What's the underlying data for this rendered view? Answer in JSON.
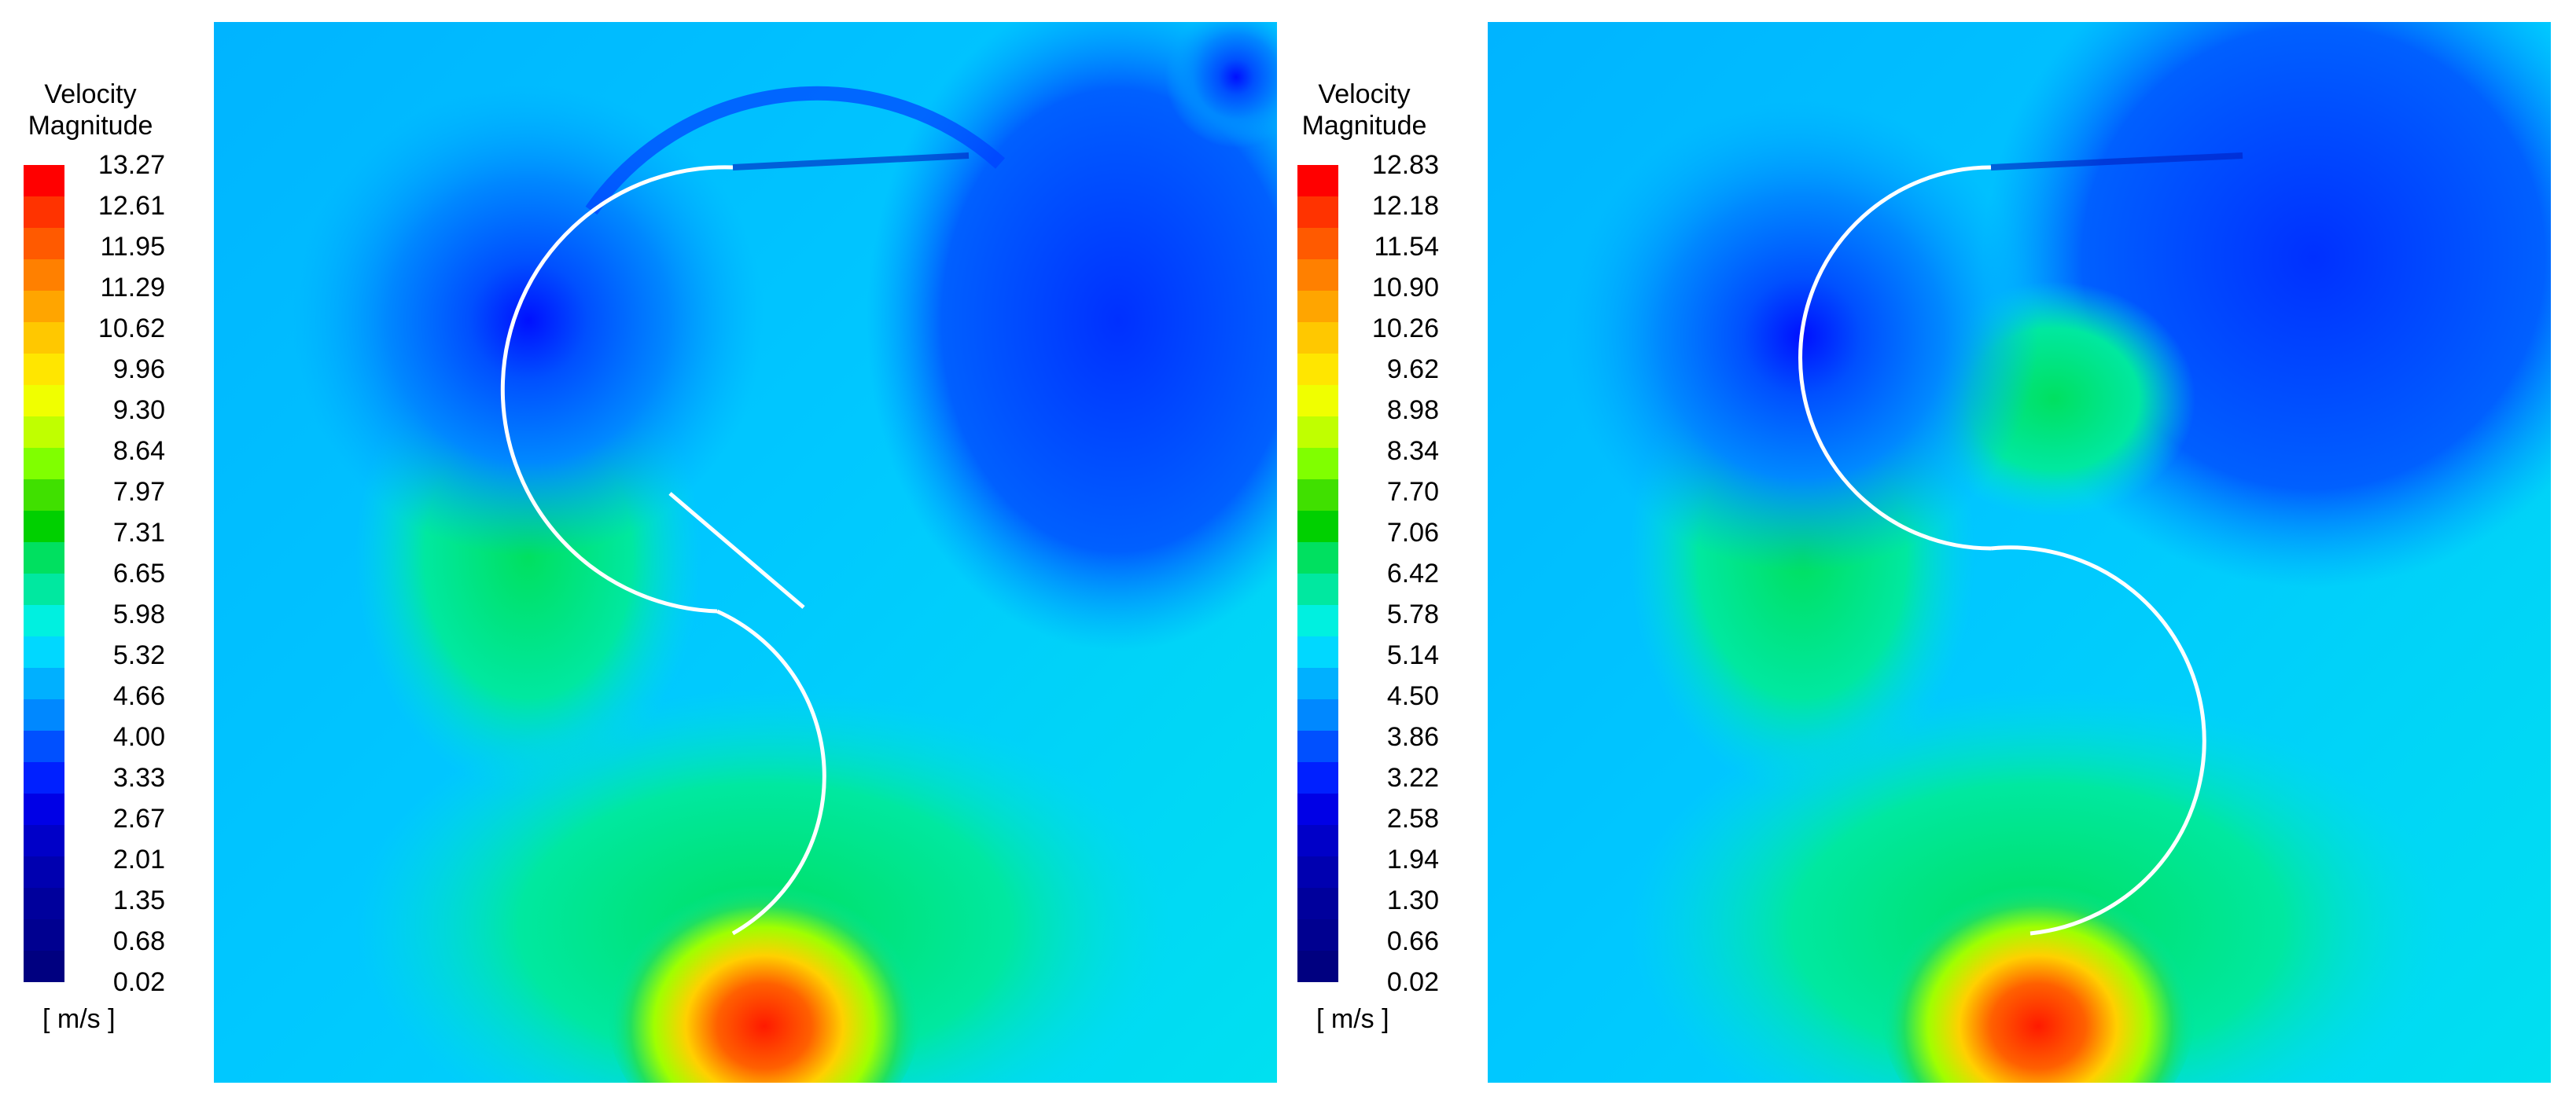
{
  "panels": [
    {
      "legend_title_line1": "Velocity",
      "legend_title_line2": "Magnitude",
      "unit": "[ m/s ]",
      "ticks": [
        "13.27",
        "12.61",
        "11.95",
        "11.29",
        "10.62",
        "9.96",
        "9.30",
        "8.64",
        "7.97",
        "7.31",
        "6.65",
        "5.98",
        "5.32",
        "4.66",
        "4.00",
        "3.33",
        "2.67",
        "2.01",
        "1.35",
        "0.68",
        "0.02"
      ]
    },
    {
      "legend_title_line1": "Velocity",
      "legend_title_line2": "Magnitude",
      "unit": "[ m/s ]",
      "ticks": [
        "12.83",
        "12.18",
        "11.54",
        "10.90",
        "10.26",
        "9.62",
        "8.98",
        "8.34",
        "7.70",
        "7.06",
        "6.42",
        "5.78",
        "5.14",
        "4.50",
        "3.86",
        "3.22",
        "2.58",
        "1.94",
        "1.30",
        "0.66",
        "0.02"
      ]
    }
  ],
  "colors": {
    "colorbar": [
      "#ff0000",
      "#ff3300",
      "#ff5a00",
      "#ff8000",
      "#ffa500",
      "#ffc800",
      "#ffe600",
      "#f0ff00",
      "#c0ff00",
      "#80ff00",
      "#40e000",
      "#00d000",
      "#00e060",
      "#00e8a0",
      "#00f0e0",
      "#00d8ff",
      "#00b0ff",
      "#0088ff",
      "#0050ff",
      "#0020ff",
      "#0000e6",
      "#0000c8",
      "#0000b0",
      "#00009c",
      "#000090",
      "#000080"
    ],
    "background_cyan": "#00d8f0",
    "blade": "#ffffff"
  }
}
